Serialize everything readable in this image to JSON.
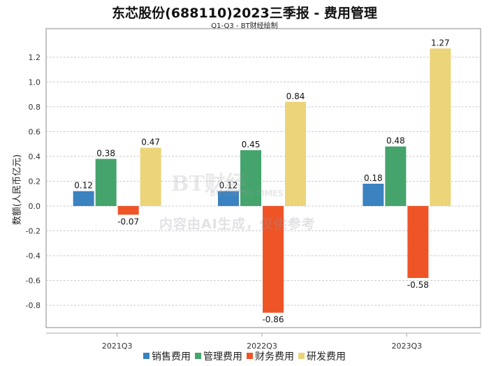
{
  "chart_data": {
    "type": "bar",
    "title": "东芯股份(688110)2023三季报 - 费用管理",
    "subtitle": "Q1-Q3 - BT财经绘制",
    "xlabel": "",
    "ylabel": "数额(人民币亿元)",
    "categories": [
      "2021Q3",
      "2022Q3",
      "2023Q3"
    ],
    "series": [
      {
        "name": "销售费用",
        "color": "#3a82c0",
        "values": [
          0.12,
          0.12,
          0.18
        ]
      },
      {
        "name": "管理费用",
        "color": "#45a46c",
        "values": [
          0.38,
          0.45,
          0.48
        ]
      },
      {
        "name": "财务费用",
        "color": "#ef5427",
        "values": [
          -0.07,
          -0.86,
          -0.58
        ]
      },
      {
        "name": "研发费用",
        "color": "#ecd479",
        "values": [
          0.47,
          0.84,
          1.27
        ]
      }
    ],
    "ylim": [
      -0.98,
      1.43
    ],
    "yticks": [
      -0.8,
      -0.6,
      -0.4,
      -0.2,
      0.0,
      0.2,
      0.4,
      0.6,
      0.8,
      1.0,
      1.2
    ],
    "grid": true,
    "legend": "bottom"
  },
  "watermark": {
    "logo": "BT财经",
    "logo_sub": "BUSINESS TIMES",
    "notice": "内容由AI生成，仅供参考"
  }
}
